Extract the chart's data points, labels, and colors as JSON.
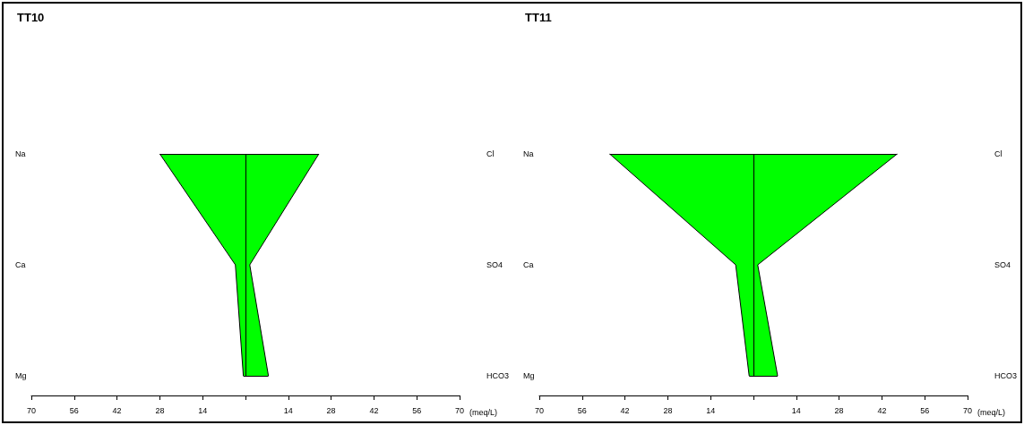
{
  "chart_data": [
    {
      "type": "area",
      "orientation": "horizontal",
      "title": "TT10",
      "xlabel": "(meq/L)",
      "categories": [
        "Na",
        "Ca",
        "Mg"
      ],
      "y2_categories": [
        "Cl",
        "SO4",
        "HCO3"
      ],
      "series": [
        {
          "color": "#00ff00",
          "values": [
            -28,
            -3.3,
            -0.7
          ]
        },
        {
          "color": "#00ff00",
          "values": [
            24,
            1.4,
            7.5
          ]
        }
      ],
      "xlim": [
        -70,
        70
      ],
      "xticks": [
        {
          "value": -70,
          "label": "70"
        },
        {
          "value": -56,
          "label": "56"
        },
        {
          "value": -42,
          "label": "42"
        },
        {
          "value": -28,
          "label": "28"
        },
        {
          "value": -14,
          "label": "14"
        },
        {
          "value": 0,
          "label": null
        },
        14,
        28,
        42,
        56,
        70
      ]
    },
    {
      "type": "area",
      "orientation": "horizontal",
      "title": "TT11",
      "xlabel": "(meq/L)",
      "categories": [
        "Na",
        "Ca",
        "Mg"
      ],
      "y2_categories": [
        "Cl",
        "SO4",
        "HCO3"
      ],
      "series": [
        {
          "color": "#00ff00",
          "values": [
            -47,
            -5.8,
            -1.4
          ]
        },
        {
          "color": "#00ff00",
          "values": [
            47,
            1.4,
            7.9
          ]
        }
      ],
      "xlim": [
        -70,
        70
      ],
      "xticks": [
        {
          "value": -70,
          "label": "70"
        },
        {
          "value": -56,
          "label": "56"
        },
        {
          "value": -42,
          "label": "42"
        },
        {
          "value": -28,
          "label": "28"
        },
        {
          "value": -14,
          "label": "14"
        },
        {
          "value": 0,
          "label": null
        },
        14,
        28,
        42,
        56,
        70
      ]
    }
  ]
}
